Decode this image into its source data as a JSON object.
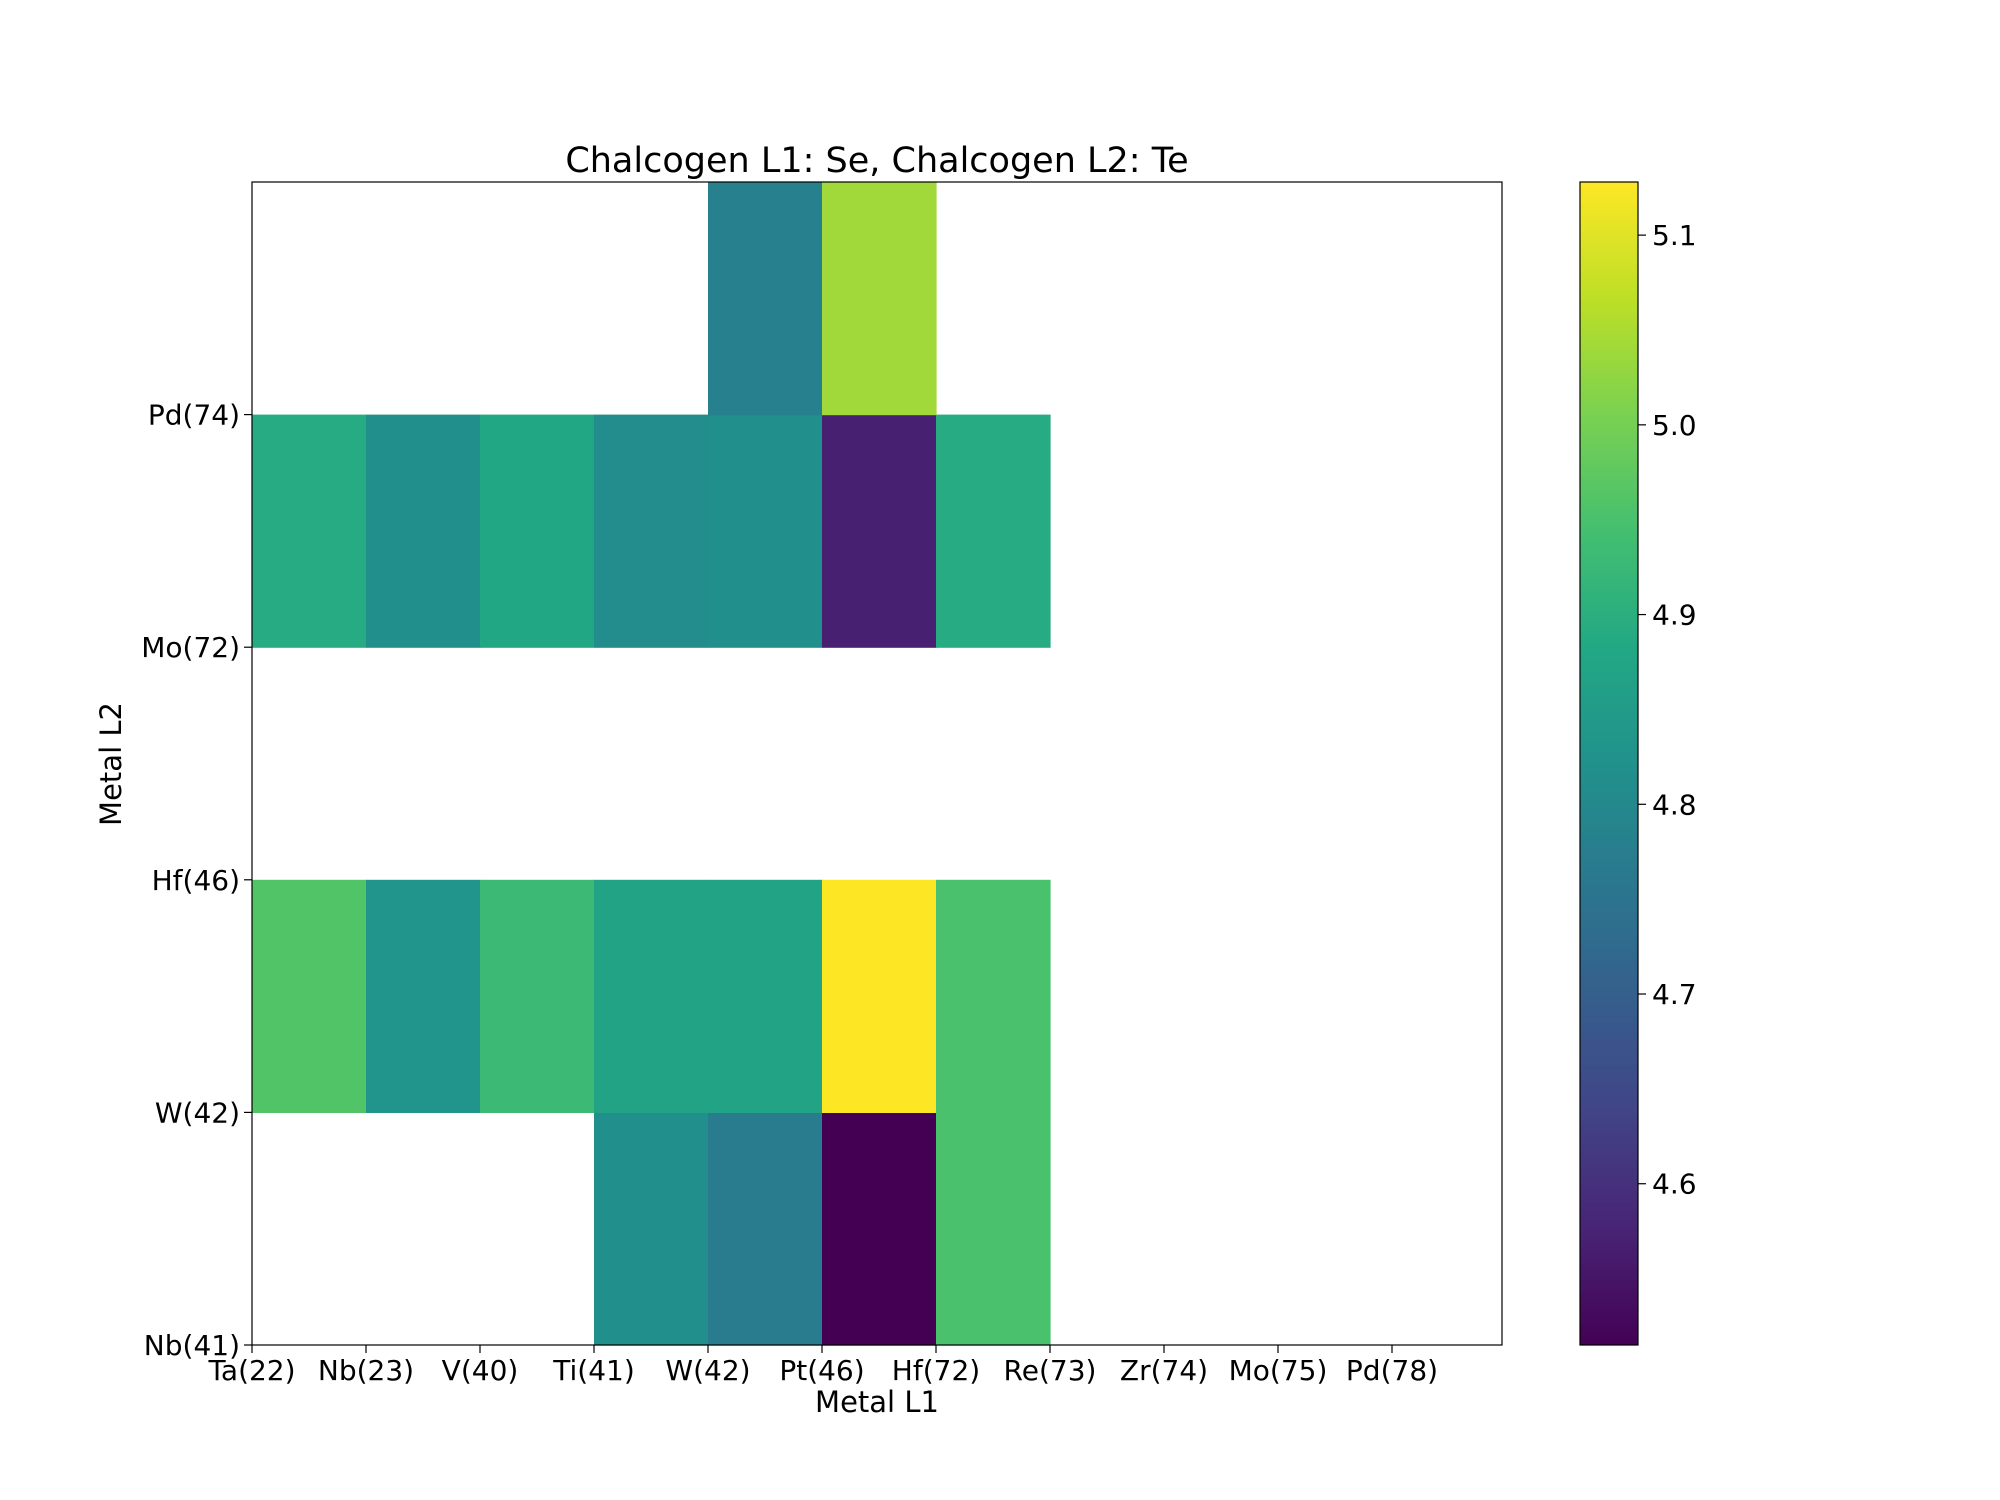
{
  "chart_data": {
    "type": "heatmap",
    "title": "Chalcogen L1: Se, Chalcogen L2: Te",
    "xlabel": "Metal L1",
    "ylabel": "Metal L2",
    "x_tick_labels": [
      "Ta(22)",
      "Nb(23)",
      "V(40)",
      "Ti(41)",
      "W(42)",
      "Pt(46)",
      "Hf(72)",
      "Re(73)",
      "Zr(74)",
      "Mo(75)",
      "Pd(78)"
    ],
    "y_tick_labels": [
      "Nb(41)",
      "W(42)",
      "Hf(46)",
      "Mo(72)",
      "Pd(74)"
    ],
    "n_columns": 11,
    "n_rows": 5,
    "colormap": "viridis",
    "colorbar": {
      "min": 4.515,
      "max": 5.128,
      "ticks": [
        4.6,
        4.7,
        4.8,
        4.9,
        5.0,
        5.1
      ],
      "tick_labels": [
        "4.6",
        "4.7",
        "4.8",
        "4.9",
        "5.0",
        "5.1"
      ]
    },
    "grid": false,
    "legend": "colorbar-right",
    "cells": [
      {
        "col": 3,
        "row": 0,
        "value": 4.82
      },
      {
        "col": 4,
        "row": 0,
        "value": 4.77
      },
      {
        "col": 5,
        "row": 0,
        "value": 4.515
      },
      {
        "col": 6,
        "row": 0,
        "value": 4.95
      },
      {
        "col": 0,
        "row": 1,
        "value": 4.96
      },
      {
        "col": 1,
        "row": 1,
        "value": 4.83
      },
      {
        "col": 2,
        "row": 1,
        "value": 4.93
      },
      {
        "col": 3,
        "row": 1,
        "value": 4.87
      },
      {
        "col": 4,
        "row": 1,
        "value": 4.87
      },
      {
        "col": 5,
        "row": 1,
        "value": 5.128
      },
      {
        "col": 6,
        "row": 1,
        "value": 4.95
      },
      {
        "col": 0,
        "row": 3,
        "value": 4.89
      },
      {
        "col": 1,
        "row": 3,
        "value": 4.82
      },
      {
        "col": 2,
        "row": 3,
        "value": 4.88
      },
      {
        "col": 3,
        "row": 3,
        "value": 4.81
      },
      {
        "col": 4,
        "row": 3,
        "value": 4.82
      },
      {
        "col": 5,
        "row": 3,
        "value": 4.57
      },
      {
        "col": 6,
        "row": 3,
        "value": 4.89
      },
      {
        "col": 4,
        "row": 4,
        "value": 4.78
      },
      {
        "col": 5,
        "row": 4,
        "value": 5.04
      }
    ]
  }
}
